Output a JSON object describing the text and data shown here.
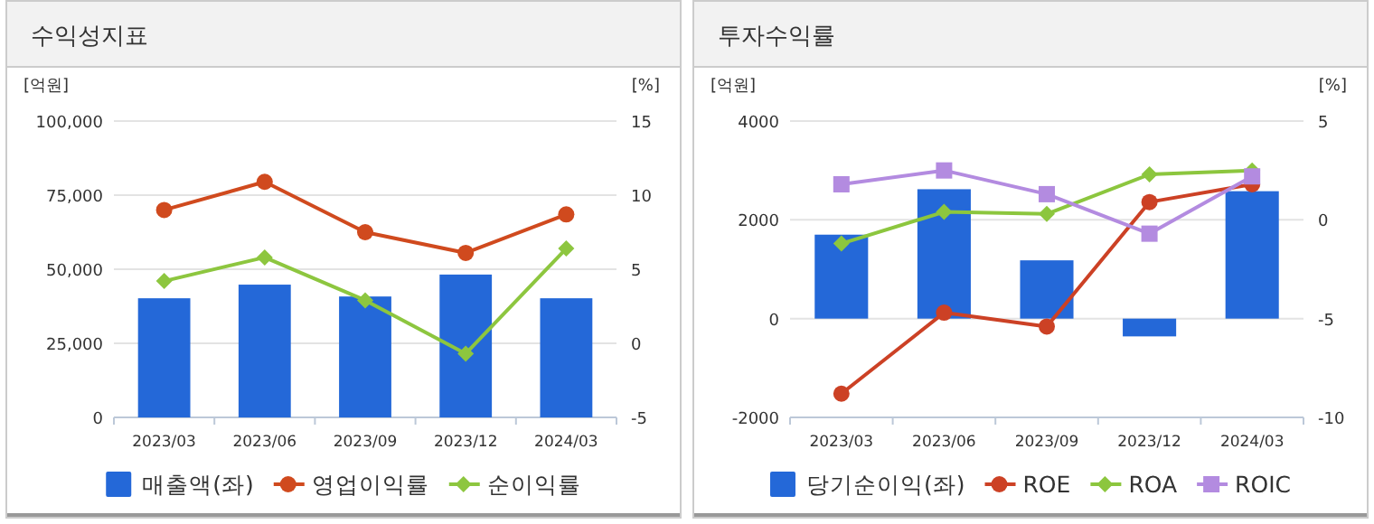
{
  "chart_data": [
    {
      "type": "bar",
      "title": "수익성지표",
      "ylabel": "[억원]",
      "y2label": "[%]",
      "categories": [
        "2023/03",
        "2023/06",
        "2023/09",
        "2023/12",
        "2024/03"
      ],
      "series": [
        {
          "name": "매출액(좌)",
          "color": "#2468d8",
          "values": [
            40200,
            44800,
            40800,
            48200,
            40200
          ]
        },
        {
          "name": "영업이익률",
          "type": "line",
          "color": "#d04a1e",
          "axis": "y2",
          "marker": "circle",
          "values": [
            9.0,
            10.9,
            7.5,
            6.1,
            8.7
          ]
        },
        {
          "name": "순이익률",
          "type": "line",
          "color": "#8dc63f",
          "axis": "y2",
          "marker": "diamond",
          "values": [
            4.2,
            5.8,
            2.9,
            -0.7,
            6.4
          ]
        }
      ],
      "ylim": [
        0,
        100000
      ],
      "yticks": [
        0,
        {
          "value": 25000,
          "label": "25,000"
        },
        {
          "value": 50000,
          "label": "50,000"
        },
        {
          "value": 75000,
          "label": "75,000"
        },
        {
          "value": 100000,
          "label": "100,000"
        }
      ],
      "y2lim": [
        -5,
        15
      ],
      "y2ticks": [
        -5,
        0,
        5,
        10,
        15
      ],
      "grid": "y",
      "legend": "bottom"
    },
    {
      "type": "bar",
      "title": "투자수익률",
      "ylabel": "[억원]",
      "y2label": "[%]",
      "categories": [
        "2023/03",
        "2023/06",
        "2023/09",
        "2023/12",
        "2024/03"
      ],
      "series": [
        {
          "name": "당기순이익(좌)",
          "color": "#2468d8",
          "values": [
            1700,
            2620,
            1180,
            -360,
            2580
          ]
        },
        {
          "name": "ROE",
          "type": "line",
          "color": "#cc4125",
          "axis": "y2",
          "marker": "circle",
          "values": [
            -8.8,
            -4.7,
            -5.4,
            0.9,
            1.8
          ]
        },
        {
          "name": "ROA",
          "type": "line",
          "color": "#8cc63e",
          "axis": "y2",
          "marker": "diamond",
          "values": [
            -1.2,
            0.4,
            0.3,
            2.3,
            2.5
          ]
        },
        {
          "name": "ROIC",
          "type": "line",
          "color": "#b38be0",
          "axis": "y2",
          "marker": "square",
          "values": [
            1.8,
            2.5,
            1.3,
            -0.7,
            2.2
          ]
        }
      ],
      "ylim": [
        -2000,
        4000
      ],
      "yticks": [
        -2000,
        0,
        2000,
        4000
      ],
      "y2lim": [
        -10,
        5
      ],
      "y2ticks": [
        -10,
        -5,
        0,
        5
      ],
      "grid": "y",
      "legend": "bottom"
    }
  ]
}
